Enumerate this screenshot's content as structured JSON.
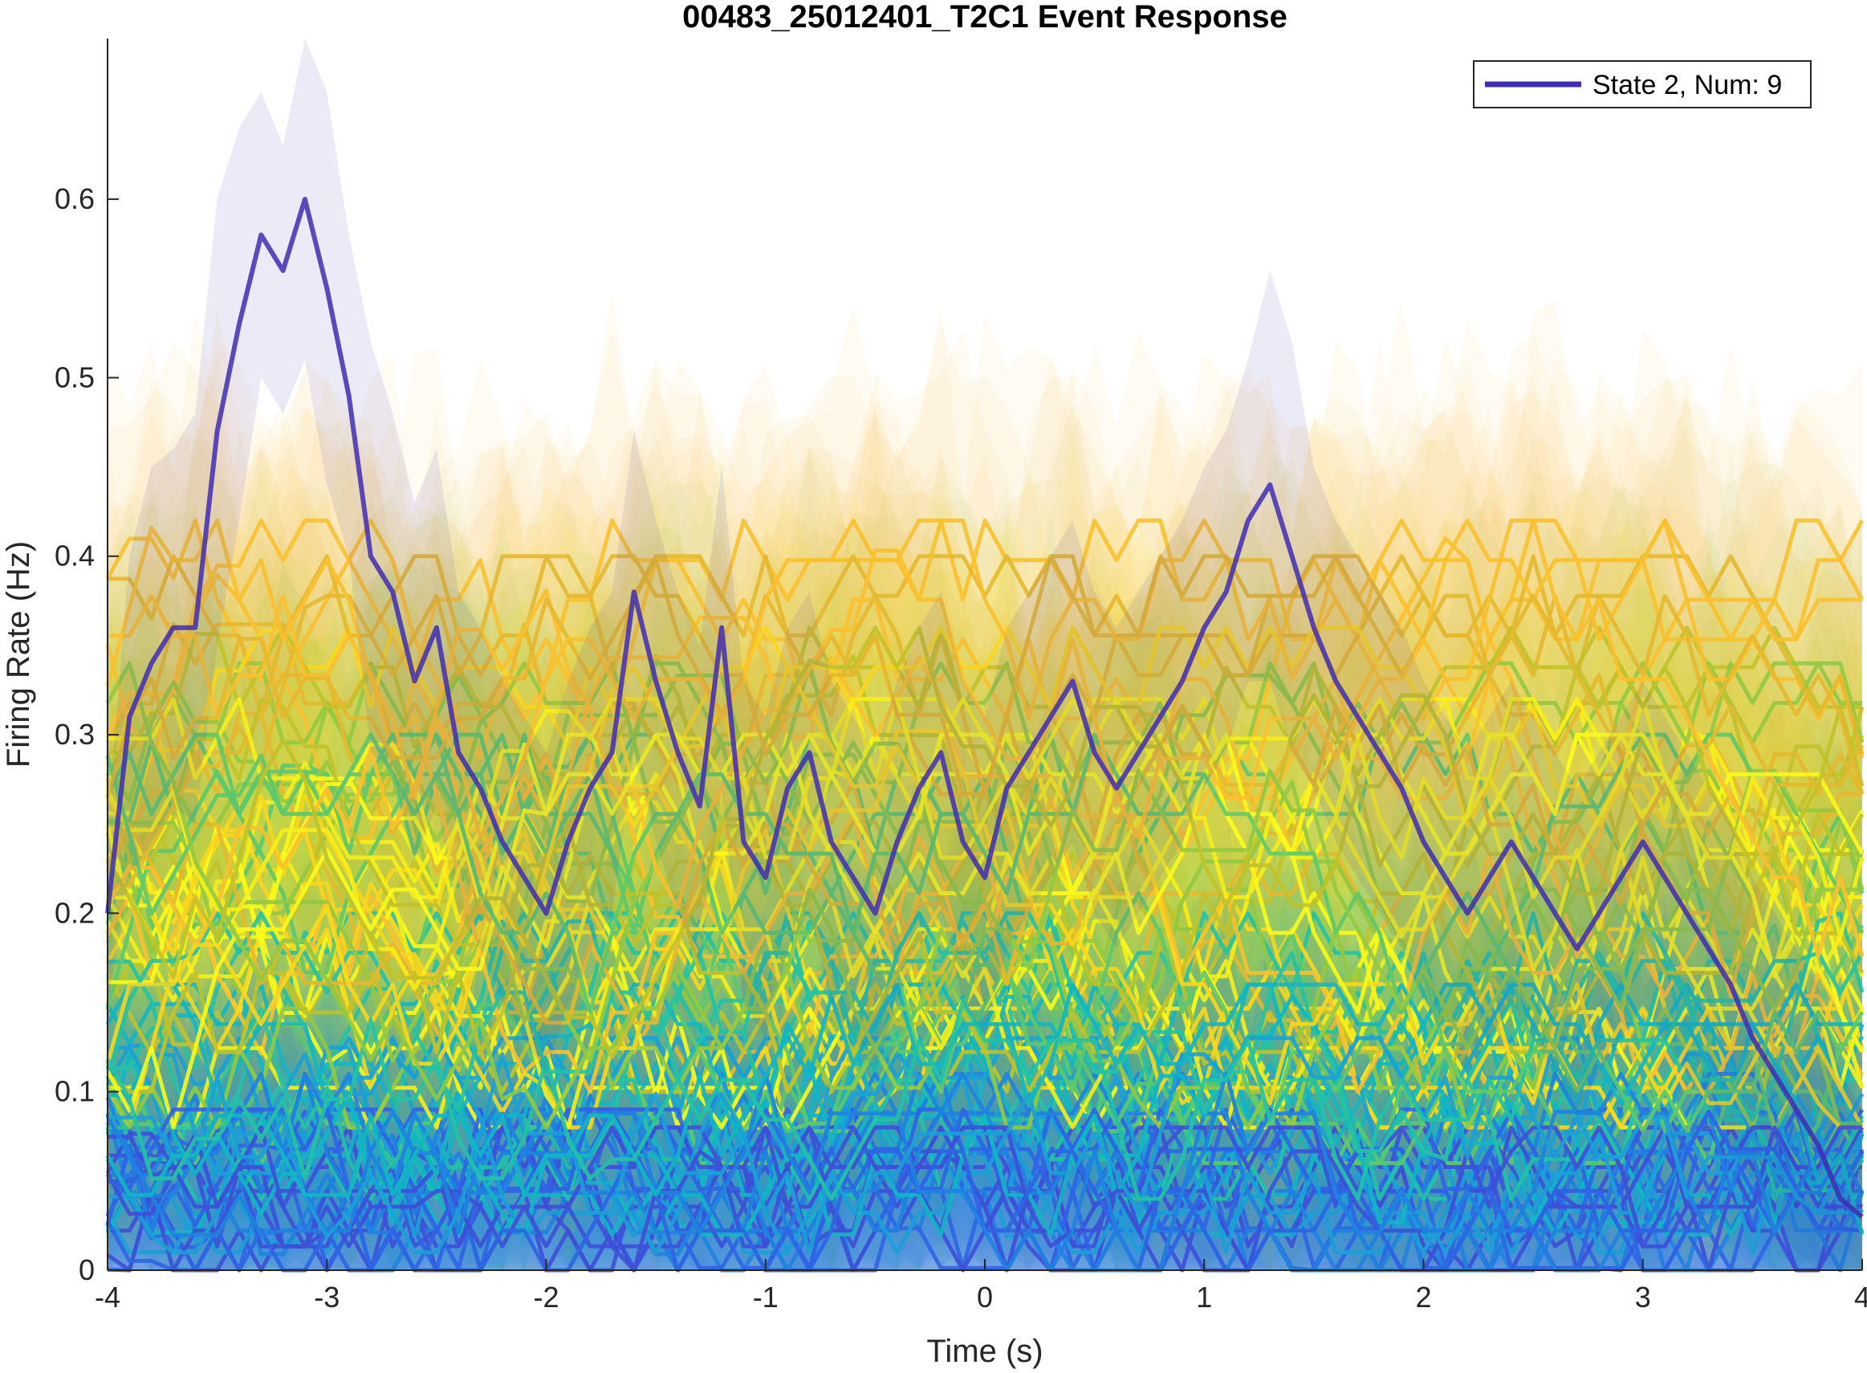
{
  "chart_data": {
    "type": "line",
    "title": "00483_25012401_T2C1 Event Response",
    "xlabel": "Time (s)",
    "ylabel": "Firing Rate (Hz)",
    "xlim": [
      -4,
      4
    ],
    "ylim": [
      0,
      0.69
    ],
    "x_ticks": [
      -4,
      -3,
      -2,
      -1,
      0,
      1,
      2,
      3,
      4
    ],
    "x_tick_labels": [
      "-4",
      "-3",
      "-2",
      "-1",
      "0",
      "1",
      "2",
      "3",
      "4"
    ],
    "y_ticks": [
      0,
      0.1,
      0.2,
      0.3,
      0.4,
      0.5,
      0.6
    ],
    "y_tick_labels": [
      "0",
      "0.1",
      "0.2",
      "0.3",
      "0.4",
      "0.5",
      "0.6"
    ],
    "grid": false,
    "legend_position": "top-right",
    "legend": [
      {
        "label": "State 2, Num: 9",
        "color": "#3f2db3"
      }
    ],
    "x": [
      -4.0,
      -3.9,
      -3.8,
      -3.7,
      -3.6,
      -3.5,
      -3.4,
      -3.3,
      -3.2,
      -3.1,
      -3.0,
      -2.9,
      -2.8,
      -2.7,
      -2.6,
      -2.5,
      -2.4,
      -2.3,
      -2.2,
      -2.1,
      -2.0,
      -1.9,
      -1.8,
      -1.7,
      -1.6,
      -1.5,
      -1.4,
      -1.3,
      -1.2,
      -1.1,
      -1.0,
      -0.9,
      -0.8,
      -0.7,
      -0.6,
      -0.5,
      -0.4,
      -0.3,
      -0.2,
      -0.1,
      0.0,
      0.1,
      0.2,
      0.3,
      0.4,
      0.5,
      0.6,
      0.7,
      0.8,
      0.9,
      1.0,
      1.1,
      1.2,
      1.3,
      1.4,
      1.5,
      1.6,
      1.7,
      1.8,
      1.9,
      2.0,
      2.1,
      2.2,
      2.3,
      2.4,
      2.5,
      2.6,
      2.7,
      2.8,
      2.9,
      3.0,
      3.1,
      3.2,
      3.3,
      3.4,
      3.5,
      3.6,
      3.7,
      3.8,
      3.9,
      4.0
    ],
    "highlighted_series": {
      "name": "State 2, Num: 9",
      "color": "#3f2db3",
      "values": [
        0.2,
        0.31,
        0.34,
        0.36,
        0.36,
        0.47,
        0.53,
        0.58,
        0.56,
        0.6,
        0.55,
        0.49,
        0.4,
        0.38,
        0.33,
        0.36,
        0.29,
        0.27,
        0.24,
        0.22,
        0.2,
        0.24,
        0.27,
        0.29,
        0.38,
        0.33,
        0.29,
        0.26,
        0.36,
        0.24,
        0.22,
        0.27,
        0.29,
        0.24,
        0.22,
        0.2,
        0.24,
        0.27,
        0.29,
        0.24,
        0.22,
        0.27,
        0.29,
        0.31,
        0.33,
        0.29,
        0.27,
        0.29,
        0.31,
        0.33,
        0.36,
        0.38,
        0.42,
        0.44,
        0.4,
        0.36,
        0.33,
        0.31,
        0.29,
        0.27,
        0.24,
        0.22,
        0.2,
        0.22,
        0.24,
        0.22,
        0.2,
        0.18,
        0.2,
        0.22,
        0.24,
        0.22,
        0.2,
        0.18,
        0.16,
        0.13,
        0.11,
        0.09,
        0.07,
        0.04,
        0.03
      ],
      "upper": [
        0.25,
        0.4,
        0.45,
        0.46,
        0.48,
        0.6,
        0.64,
        0.66,
        0.63,
        0.69,
        0.66,
        0.58,
        0.52,
        0.48,
        0.43,
        0.46,
        0.38,
        0.36,
        0.33,
        0.31,
        0.29,
        0.33,
        0.36,
        0.38,
        0.47,
        0.42,
        0.38,
        0.35,
        0.45,
        0.33,
        0.31,
        0.36,
        0.38,
        0.33,
        0.31,
        0.29,
        0.33,
        0.36,
        0.38,
        0.33,
        0.31,
        0.36,
        0.38,
        0.4,
        0.42,
        0.38,
        0.36,
        0.38,
        0.4,
        0.42,
        0.45,
        0.47,
        0.51,
        0.56,
        0.52,
        0.45,
        0.42,
        0.4,
        0.38,
        0.36,
        0.33,
        0.31,
        0.29,
        0.31,
        0.33,
        0.31,
        0.29,
        0.27,
        0.29,
        0.31,
        0.33,
        0.31,
        0.29,
        0.27,
        0.25,
        0.22,
        0.2,
        0.18,
        0.16,
        0.11,
        0.09
      ],
      "lower": [
        0.15,
        0.22,
        0.24,
        0.26,
        0.25,
        0.35,
        0.42,
        0.5,
        0.48,
        0.51,
        0.44,
        0.4,
        0.29,
        0.28,
        0.23,
        0.26,
        0.2,
        0.18,
        0.15,
        0.13,
        0.11,
        0.15,
        0.18,
        0.2,
        0.29,
        0.24,
        0.2,
        0.17,
        0.27,
        0.15,
        0.13,
        0.18,
        0.2,
        0.15,
        0.13,
        0.11,
        0.15,
        0.18,
        0.2,
        0.15,
        0.13,
        0.18,
        0.2,
        0.22,
        0.24,
        0.2,
        0.18,
        0.2,
        0.22,
        0.24,
        0.27,
        0.29,
        0.33,
        0.33,
        0.29,
        0.27,
        0.24,
        0.22,
        0.2,
        0.18,
        0.15,
        0.13,
        0.11,
        0.13,
        0.15,
        0.13,
        0.11,
        0.09,
        0.11,
        0.13,
        0.15,
        0.13,
        0.11,
        0.09,
        0.07,
        0.05,
        0.03,
        0.01,
        0.0,
        0.0,
        0.0
      ]
    },
    "background_series_count": 95,
    "background_colors": [
      "#3e4fd8",
      "#2f64e6",
      "#1f82e0",
      "#1ba0d6",
      "#12b6c3",
      "#24c2a4",
      "#5cc86d",
      "#92c942",
      "#c1c22a",
      "#e6b82e",
      "#fbc02d",
      "#f9d61e",
      "#f7ee19",
      "#fbf91b"
    ],
    "background_value_ranges": [
      [
        0.0,
        0.08
      ],
      [
        0.0,
        0.09
      ],
      [
        0.0,
        0.11
      ],
      [
        0.01,
        0.13
      ],
      [
        0.02,
        0.16
      ],
      [
        0.04,
        0.2
      ],
      [
        0.06,
        0.3
      ],
      [
        0.08,
        0.34
      ],
      [
        0.1,
        0.36
      ],
      [
        0.1,
        0.4
      ],
      [
        0.1,
        0.42
      ],
      [
        0.08,
        0.36
      ],
      [
        0.08,
        0.32
      ],
      [
        0.08,
        0.3
      ]
    ]
  }
}
